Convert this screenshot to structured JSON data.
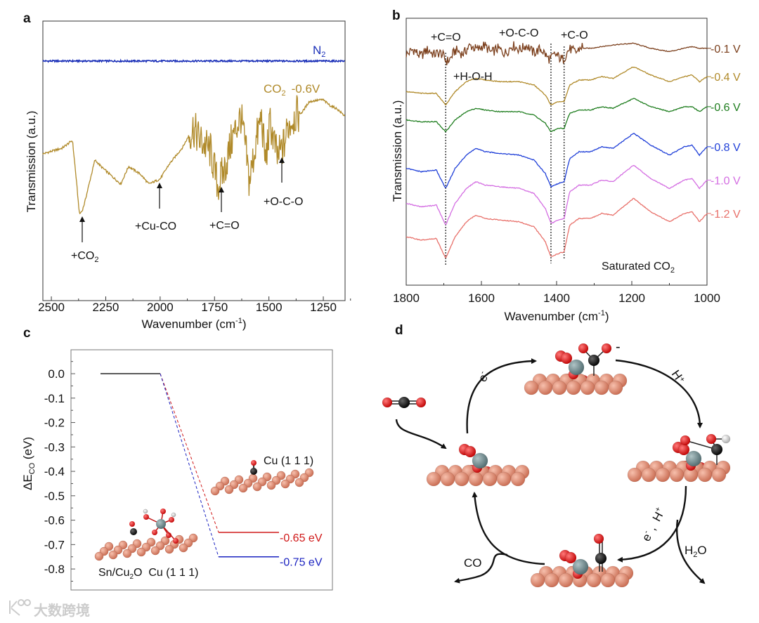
{
  "panel_labels": {
    "a": "a",
    "b": "b",
    "c": "c",
    "d": "d"
  },
  "watermark": "大数跨境",
  "chart_data": [
    {
      "panel": "a",
      "type": "line",
      "xlabel": "Wavenumber (cm",
      "xlabel_sup": "-1",
      "xlabel_end": ")",
      "ylabel": "Transmission (a.u.)",
      "xlim": [
        2539,
        1150
      ],
      "ylim": [
        0,
        100
      ],
      "xticks": [
        2500,
        2250,
        2000,
        1750,
        1500,
        1250
      ],
      "series": [
        {
          "name": "N",
          "name_sub": "2",
          "color": "#1a2fb8",
          "x": [
            2539,
            1150
          ],
          "values": [
            85.7,
            85.7
          ]
        },
        {
          "name": "CO",
          "name_sub": "2",
          "name_suffix": "-0.6V",
          "color": "#b08a2a",
          "x": [
            2539,
            2452,
            2403,
            2387,
            2371,
            2358,
            2348,
            2300,
            2268,
            2181,
            2145,
            2090,
            2052,
            2000,
            1961,
            1897,
            1848,
            1816,
            1768,
            1735,
            1703,
            1671,
            1629,
            1606,
            1590,
            1558,
            1535,
            1516,
            1494,
            1461,
            1429,
            1413,
            1381,
            1348,
            1316,
            1284,
            1252,
            1219,
            1187,
            1152
          ],
          "values": [
            52.5,
            54.5,
            57.3,
            44.7,
            30.9,
            32.2,
            34.7,
            50.3,
            47.7,
            41.7,
            48.0,
            45.2,
            41.7,
            43.5,
            48.5,
            54.8,
            61.8,
            57.3,
            53.5,
            41.0,
            47.2,
            57.3,
            66.1,
            53.5,
            42.2,
            57.3,
            66.1,
            49.7,
            63.6,
            51.0,
            56.0,
            62.3,
            66.1,
            67.3,
            71.1,
            71.6,
            71.9,
            69.8,
            68.6,
            66.1
          ]
        }
      ],
      "annotations": [
        {
          "text": "+CO",
          "sub": "2",
          "x": 2358
        },
        {
          "text": "+Cu-CO",
          "x": 1970
        },
        {
          "text": "+C=O",
          "x": 1686
        },
        {
          "text": "+O-C-O",
          "x": 1410
        }
      ]
    },
    {
      "panel": "b",
      "type": "line",
      "xlabel": "Wavenumber (cm",
      "xlabel_sup": "-1",
      "xlabel_end": ")",
      "ylabel": "Transmission (a.u.)",
      "xlim": [
        1800,
        1000
      ],
      "ylim": [
        0,
        160
      ],
      "xticks": [
        1800,
        1600,
        1400,
        1200,
        1000
      ],
      "x": [
        1800,
        1760,
        1720,
        1695,
        1670,
        1640,
        1615,
        1590,
        1550,
        1500,
        1460,
        1430,
        1415,
        1395,
        1380,
        1365,
        1340,
        1310,
        1280,
        1250,
        1195,
        1150,
        1100,
        1060,
        1040,
        1020,
        1000
      ],
      "series": [
        {
          "name": "-0.1 V",
          "color": "#7b3f1c",
          "noisy": true,
          "values": [
            140,
            139,
            140,
            135,
            139,
            141,
            143,
            142,
            140,
            143,
            141,
            139,
            136,
            137,
            137,
            140,
            142,
            142,
            143,
            144,
            145,
            142,
            140,
            142,
            143,
            142,
            142
          ]
        },
        {
          "name": "-0.4 V",
          "color": "#b08a2a",
          "values": [
            116,
            115,
            115,
            108,
            116,
            122,
            124,
            123,
            122,
            122,
            120,
            114,
            108,
            110,
            110,
            120,
            123,
            123,
            125,
            124,
            131,
            126,
            122,
            125,
            126,
            122,
            125
          ]
        },
        {
          "name": "-0.6 V",
          "color": "#1e7d1e",
          "values": [
            99,
            98,
            98,
            92,
            99,
            104,
            106,
            105,
            104,
            104,
            102,
            97,
            92,
            94,
            94,
            103,
            105,
            105,
            107,
            106,
            112,
            107,
            104,
            107,
            107,
            104,
            107
          ]
        },
        {
          "name": "-0.8 V",
          "color": "#1f3fd8",
          "values": [
            70,
            68,
            69,
            58,
            70,
            78,
            82,
            80,
            79,
            78,
            75,
            67,
            59,
            61,
            62,
            76,
            80,
            80,
            83,
            82,
            91,
            84,
            78,
            83,
            84,
            78,
            83
          ]
        },
        {
          "name": "-1.0 V",
          "color": "#d46ee2",
          "values": [
            49,
            47,
            48,
            36,
            49,
            58,
            62,
            60,
            59,
            58,
            55,
            46,
            37,
            39,
            40,
            56,
            60,
            60,
            63,
            62,
            72,
            64,
            58,
            63,
            64,
            58,
            63
          ]
        },
        {
          "name": "-1.2 V",
          "color": "#e8706a",
          "values": [
            29,
            27,
            28,
            16,
            29,
            38,
            42,
            40,
            39,
            38,
            35,
            26,
            17,
            19,
            20,
            36,
            40,
            40,
            43,
            42,
            52,
            44,
            38,
            43,
            44,
            38,
            43
          ]
        }
      ],
      "guides": [
        1695,
        1415,
        1380
      ],
      "annotations": [
        {
          "text": "+C=O"
        },
        {
          "text": "+O-C-O"
        },
        {
          "text": "+C-O"
        },
        {
          "text": "+H-O-H"
        }
      ],
      "note": "Saturated CO",
      "note_sub": "2"
    },
    {
      "panel": "c",
      "type": "line",
      "ylabel": "ΔE",
      "ylabel_sub": "CO",
      "ylabel_end": " (eV)",
      "ylim": [
        0.098,
        -0.886
      ],
      "yticks": [
        0.0,
        -0.1,
        -0.2,
        -0.3,
        -0.4,
        -0.5,
        -0.6,
        -0.7,
        -0.8
      ],
      "ytick_labels": [
        "0.0",
        "-0.1",
        "-0.2",
        "-0.3",
        "-0.4",
        "-0.5",
        "-0.6",
        "-0.7",
        "-0.8"
      ],
      "levels": [
        {
          "name": "initial",
          "value": 0.0,
          "color": "#222222"
        },
        {
          "name": "Cu (1 1 1)",
          "value": -0.65,
          "label": "-0.65 eV",
          "color": "#d01818"
        },
        {
          "name": "Sn/Cu2O Cu (1 1 1)",
          "value": -0.75,
          "label": "-0.75 eV",
          "color": "#1a22c0"
        }
      ],
      "structure_labels": {
        "cu111": "Cu (1 1 1)",
        "sncu2o_pre": "Sn/Cu",
        "sncu2o_sub": "2",
        "sncu2o_post": "O  Cu (1 1 1)"
      }
    }
  ],
  "diagram": {
    "labels": {
      "e_minus": "e",
      "e_sup": "-",
      "h_plus": "H",
      "h_sup": "+",
      "e_h": "e",
      "e_h_sup1": "-",
      "e_h_mid": " ,  H",
      "e_h_sup2": "+",
      "h2o_h": "H",
      "h2o_sub": "2",
      "h2o_o": "O",
      "co": "CO",
      "charge": "-"
    },
    "colors": {
      "cu": "#e08a70",
      "o": "#e01010",
      "c": "#111111",
      "sn": "#6e8a8e",
      "h": "#eeeeee"
    }
  }
}
